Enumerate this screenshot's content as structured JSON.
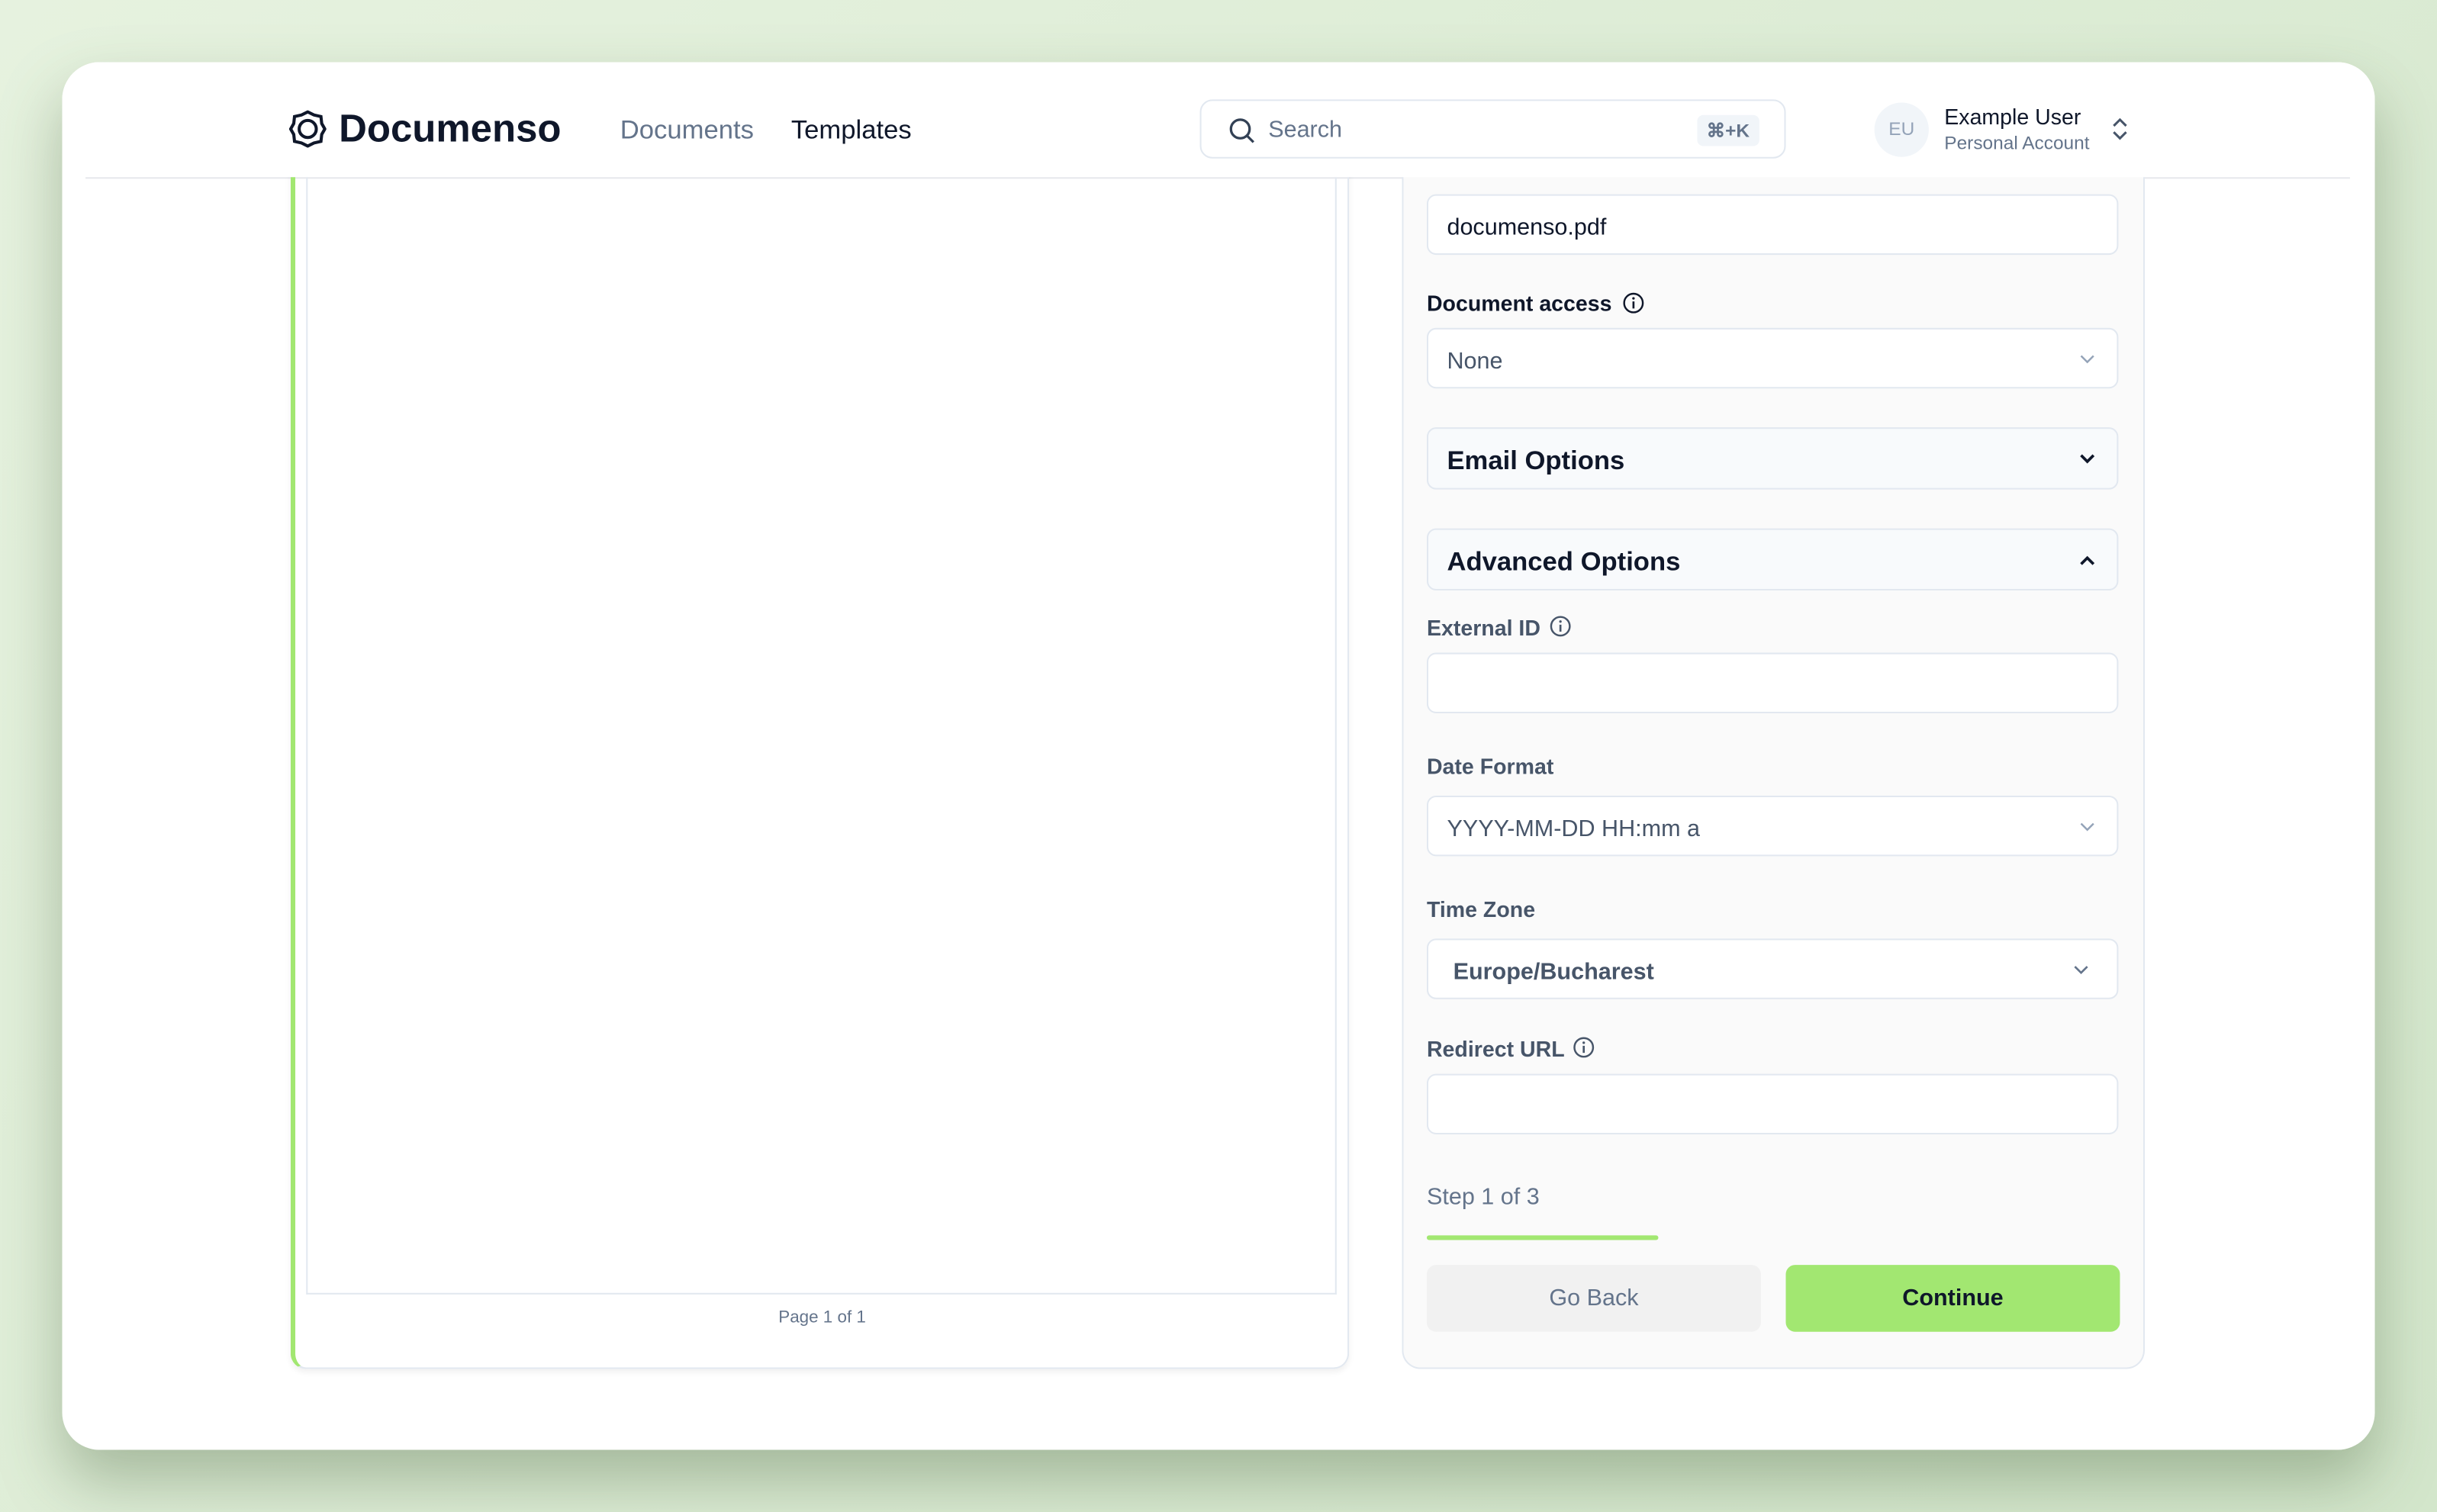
{
  "header": {
    "brand": "Documenso",
    "nav": [
      "Documents",
      "Templates"
    ],
    "search": {
      "placeholder": "Search",
      "shortcut": "⌘+K"
    },
    "user": {
      "initials": "EU",
      "name": "Example User",
      "account": "Personal Account"
    }
  },
  "preview": {
    "page_label": "Page 1 of 1"
  },
  "form": {
    "file_name": "documenso.pdf",
    "document_access": {
      "label": "Document access",
      "value": "None"
    },
    "email_options": "Email Options",
    "advanced_options": "Advanced Options",
    "external_id": {
      "label": "External ID"
    },
    "date_format": {
      "label": "Date Format",
      "value": "YYYY-MM-DD HH:mm a"
    },
    "time_zone": {
      "label": "Time Zone",
      "value": "Europe/Bucharest"
    },
    "redirect_url": {
      "label": "Redirect URL"
    },
    "step": "Step 1 of 3",
    "buttons": {
      "back": "Go Back",
      "continue": "Continue"
    }
  }
}
